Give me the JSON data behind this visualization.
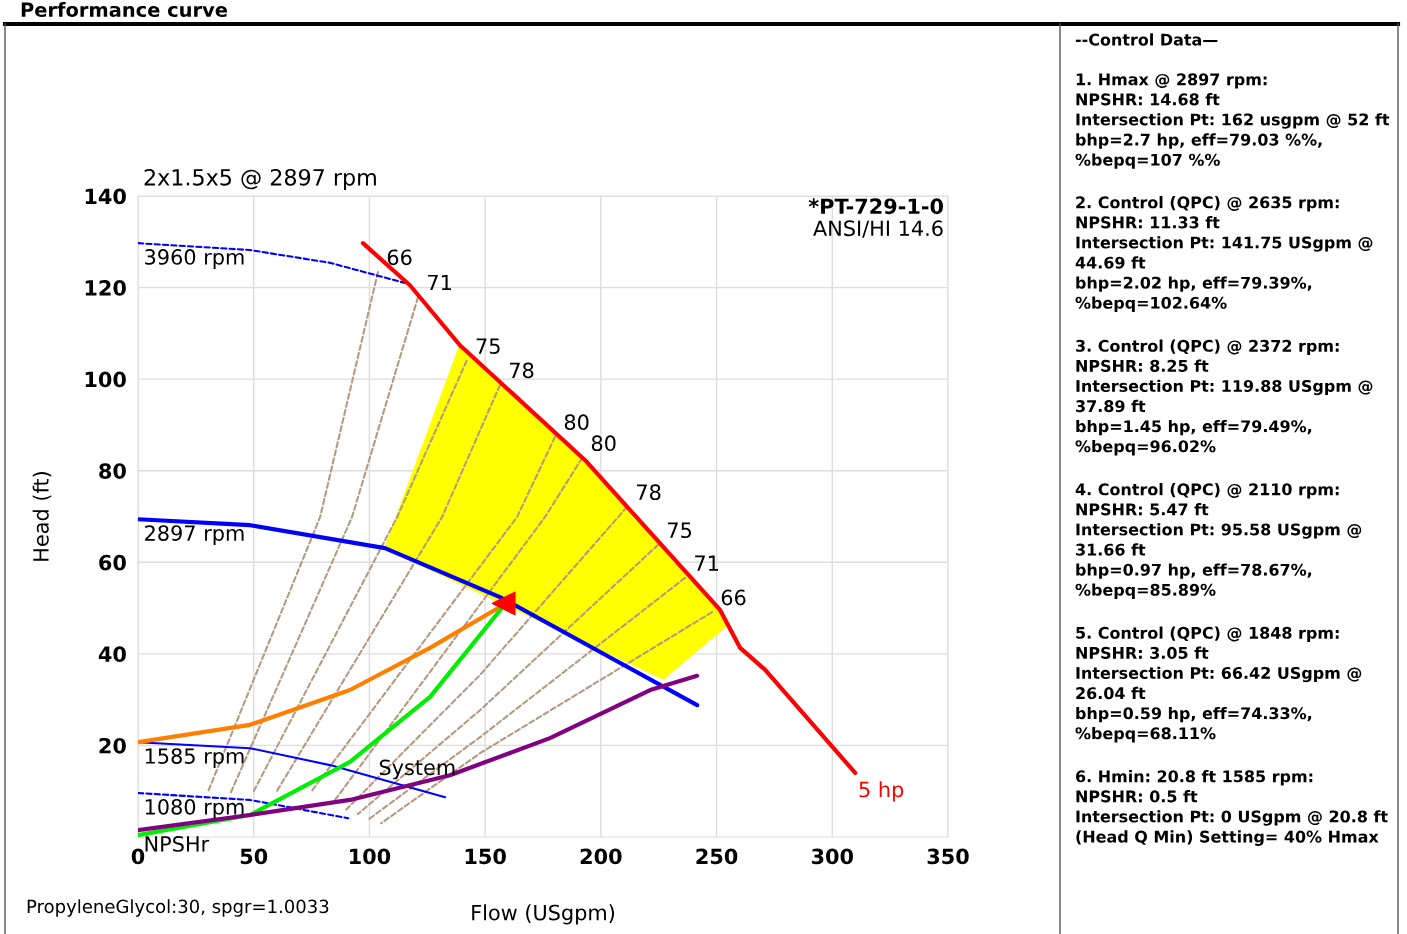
{
  "chart_data": [
    {
      "type": "line",
      "title": "Performance curve",
      "subtitle": "2x1.5x5 @ 2897 rpm",
      "xlabel": "Flow (USgpm)",
      "ylabel": "Head (ft)",
      "xlim": [
        0,
        350
      ],
      "xticks": [
        0,
        50,
        100,
        150,
        200,
        250,
        300,
        350
      ],
      "ylim": [
        0,
        140
      ],
      "yticks": [
        20,
        40,
        60,
        80,
        100,
        120,
        140
      ],
      "grid": true,
      "series": [
        {
          "type": "area",
          "color": "#ffff00",
          "x": [
            106.7,
            139.1,
            193.2,
            251.5,
            254,
            227,
            106.7
          ],
          "values": [
            63.1,
            107.4,
            82.3,
            49.6,
            46,
            34.5,
            63.1
          ]
        },
        {
          "color": "#b59a80",
          "line_style": "dashed",
          "x": [
            103.7,
            78.7,
            30
          ],
          "values": [
            123.4,
            69.9,
            9.6
          ]
        },
        {
          "color": "#b59a80",
          "line_style": "dashed",
          "x": [
            121,
            92.5,
            40
          ],
          "values": [
            117.9,
            69.9,
            9.6
          ]
        },
        {
          "color": "#b59a80",
          "line_style": "dashed",
          "x": [
            142,
            112,
            50
          ],
          "values": [
            104,
            69.9,
            10
          ]
        },
        {
          "color": "#b59a80",
          "line_style": "dashed",
          "x": [
            156.4,
            131.4,
            60
          ],
          "values": [
            98.7,
            69.9,
            10
          ]
        },
        {
          "color": "#b59a80",
          "line_style": "dashed",
          "x": [
            180.2,
            163.8,
            75
          ],
          "values": [
            87.4,
            69.9,
            10
          ]
        },
        {
          "color": "#b59a80",
          "line_style": "dashed",
          "x": [
            191.9,
            175.9,
            85
          ],
          "values": [
            82.8,
            69.9,
            8
          ]
        },
        {
          "color": "#b59a80",
          "line_style": "dashed",
          "x": [
            211.3,
            147.8,
            90
          ],
          "values": [
            72.1,
            35.4,
            6
          ]
        },
        {
          "color": "#b59a80",
          "line_style": "dashed",
          "x": [
            224.7,
            147.8,
            95
          ],
          "values": [
            63.8,
            27.7,
            5
          ]
        },
        {
          "color": "#b59a80",
          "line_style": "dashed",
          "x": [
            236.4,
            147.8,
            100
          ],
          "values": [
            56.6,
            21.8,
            4
          ]
        },
        {
          "color": "#b59a80",
          "line_style": "dashed",
          "x": [
            248,
            147.8,
            105
          ],
          "values": [
            49.1,
            18.3,
            3
          ]
        },
        {
          "name": "3960 rpm",
          "color": "#0000ff",
          "line_style": "dashed",
          "x": [
            0,
            48.4,
            83,
            115.4
          ],
          "values": [
            129.7,
            128.2,
            125.4,
            121.0
          ]
        },
        {
          "name": "2897 rpm",
          "color": "#0000ff",
          "x": [
            0,
            48.4,
            106.7,
            156.4,
            199.7,
            241.6
          ],
          "values": [
            69.4,
            68.1,
            63.1,
            52.4,
            40.4,
            28.8
          ]
        },
        {
          "name": "1585 rpm",
          "color": "#0000ff",
          "x": [
            0,
            48.4,
            83,
            132.7
          ],
          "values": [
            20.7,
            19.4,
            15.7,
            8.7
          ]
        },
        {
          "name": "1080 rpm",
          "color": "#0000ff",
          "line_style": "dashed",
          "x": [
            0,
            48.4,
            90.8
          ],
          "values": [
            9.6,
            8.1,
            4.1
          ]
        },
        {
          "color": "#ff8000",
          "x": [
            0,
            48.4,
            91.6,
            126.2,
            158.6
          ],
          "values": [
            20.7,
            24.5,
            32.1,
            41.3,
            50.9
          ]
        },
        {
          "color": "#00ee00",
          "x": [
            0,
            48.4,
            91.6,
            126.2,
            158.6
          ],
          "values": [
            0.4,
            4.8,
            16.4,
            30.6,
            50.9
          ]
        },
        {
          "name": "NPSHr",
          "color": "#800080",
          "x": [
            0,
            48.4,
            91.6,
            134.8,
            178,
            221.3,
            241.6
          ],
          "values": [
            1.5,
            4.8,
            8.1,
            13.5,
            21.6,
            32.1,
            35.2
          ]
        },
        {
          "name": "5 hp",
          "color": "#ff0000",
          "x": [
            97.2,
            117.5,
            139.1,
            193.2,
            251.5,
            260.2,
            271,
            309.9
          ],
          "values": [
            129.7,
            120.5,
            107.4,
            82.3,
            49.6,
            41.3,
            36.5,
            14.0
          ]
        },
        {
          "type": "scatter",
          "marker": "triangle",
          "color": "#ff0000",
          "x": [
            158
          ],
          "values": [
            51
          ]
        }
      ],
      "annotations": [
        "*PT-729-1-0",
        "ANSI/HI 14.6",
        "PropyleneGlycol:30, spgr=1.0033",
        {
          "text": "System",
          "x": 100.3,
          "y": 12
        },
        {
          "text": "66",
          "x": 103.7,
          "y": 123.4
        },
        {
          "text": "71",
          "x": 121,
          "y": 117.9
        },
        {
          "text": "75",
          "x": 142,
          "y": 104
        },
        {
          "text": "78",
          "x": 156.4,
          "y": 98.7
        },
        {
          "text": "80",
          "x": 180.2,
          "y": 87.4
        },
        {
          "text": "80",
          "x": 191.9,
          "y": 82.8
        },
        {
          "text": "78",
          "x": 211.3,
          "y": 72.1
        },
        {
          "text": "75",
          "x": 224.7,
          "y": 63.8
        },
        {
          "text": "71",
          "x": 236.4,
          "y": 56.6
        },
        {
          "text": "66",
          "x": 248,
          "y": 49.1
        }
      ]
    },
    {
      "type": "other",
      "title": "--Control Data—",
      "annotations": [
        "1. Hmax @ 2897 rpm:\nNPSHR: 14.68 ft\nIntersection Pt: 162 usgpm @ 52 ft\nbhp=2.7 hp, eff=79.03 %%,\n%bepq=107 %%",
        "2. Control (QPC) @ 2635 rpm:\nNPSHR: 11.33 ft\nIntersection Pt: 141.75 USgpm @\n44.69 ft\nbhp=2.02 hp, eff=79.39%,\n%bepq=102.64%",
        "3. Control (QPC) @ 2372 rpm:\nNPSHR: 8.25 ft\nIntersection Pt: 119.88 USgpm @\n37.89 ft\nbhp=1.45 hp, eff=79.49%,\n%bepq=96.02%",
        "4. Control (QPC) @ 2110 rpm:\nNPSHR: 5.47 ft\nIntersection Pt: 95.58 USgpm @\n31.66 ft\nbhp=0.97 hp, eff=78.67%,\n%bepq=85.89%",
        "5. Control (QPC) @ 1848 rpm:\nNPSHR: 3.05 ft\nIntersection Pt: 66.42 USgpm @\n26.04 ft\nbhp=0.59 hp, eff=74.33%,\n%bepq=68.11%",
        "6. Hmin: 20.8 ft 1585 rpm:\nNPSHR: 0.5 ft\nIntersection Pt: 0 USgpm @ 20.8 ft\n(Head Q Min) Setting= 40% Hmax"
      ]
    }
  ]
}
